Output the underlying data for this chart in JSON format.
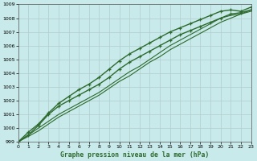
{
  "title": "Graphe pression niveau de la mer (hPa)",
  "bg_color": "#c8eaea",
  "grid_color": "#b0cccc",
  "line_color": "#2d6a2d",
  "xlim": [
    0,
    23
  ],
  "ylim": [
    999,
    1009
  ],
  "xticks": [
    0,
    1,
    2,
    3,
    4,
    5,
    6,
    7,
    8,
    9,
    10,
    11,
    12,
    13,
    14,
    15,
    16,
    17,
    18,
    19,
    20,
    21,
    22,
    23
  ],
  "yticks": [
    999,
    1000,
    1001,
    1002,
    1003,
    1004,
    1005,
    1006,
    1007,
    1008,
    1009
  ],
  "lines": [
    {
      "x": [
        0,
        1,
        2,
        3,
        4,
        5,
        6,
        7,
        8,
        9,
        10,
        11,
        12,
        13,
        14,
        15,
        16,
        17,
        18,
        19,
        20,
        21,
        22,
        23
      ],
      "y": [
        999.0,
        999.7,
        1000.3,
        1001.1,
        1001.8,
        1002.3,
        1002.8,
        1003.2,
        1003.7,
        1004.3,
        1004.9,
        1005.4,
        1005.8,
        1006.2,
        1006.6,
        1007.0,
        1007.3,
        1007.6,
        1007.9,
        1008.2,
        1008.5,
        1008.6,
        1008.5,
        1008.8
      ],
      "marker": true,
      "linewidth": 1.0
    },
    {
      "x": [
        0,
        1,
        2,
        3,
        4,
        5,
        6,
        7,
        8,
        9,
        10,
        11,
        12,
        13,
        14,
        15,
        16,
        17,
        18,
        19,
        20,
        21,
        22,
        23
      ],
      "y": [
        999.0,
        999.5,
        1000.2,
        1001.0,
        1001.6,
        1002.0,
        1002.4,
        1002.8,
        1003.2,
        1003.7,
        1004.3,
        1004.8,
        1005.2,
        1005.6,
        1006.0,
        1006.4,
        1006.8,
        1007.1,
        1007.4,
        1007.7,
        1008.0,
        1008.3,
        1008.4,
        1008.6
      ],
      "marker": true,
      "linewidth": 1.0
    },
    {
      "x": [
        0,
        1,
        2,
        3,
        4,
        5,
        6,
        7,
        8,
        9,
        10,
        11,
        12,
        13,
        14,
        15,
        16,
        17,
        18,
        19,
        20,
        21,
        22,
        23
      ],
      "y": [
        999.0,
        999.4,
        999.8,
        1000.3,
        1000.8,
        1001.2,
        1001.6,
        1002.0,
        1002.4,
        1002.9,
        1003.4,
        1003.8,
        1004.3,
        1004.8,
        1005.2,
        1005.7,
        1006.1,
        1006.5,
        1006.9,
        1007.3,
        1007.7,
        1008.0,
        1008.3,
        1008.6
      ],
      "marker": false,
      "linewidth": 0.8
    },
    {
      "x": [
        0,
        1,
        2,
        3,
        4,
        5,
        6,
        7,
        8,
        9,
        10,
        11,
        12,
        13,
        14,
        15,
        16,
        17,
        18,
        19,
        20,
        21,
        22,
        23
      ],
      "y": [
        999.0,
        999.5,
        1000.0,
        1000.5,
        1001.0,
        1001.4,
        1001.8,
        1002.2,
        1002.6,
        1003.1,
        1003.6,
        1004.1,
        1004.5,
        1005.0,
        1005.5,
        1006.0,
        1006.4,
        1006.8,
        1007.2,
        1007.6,
        1008.0,
        1008.2,
        1008.3,
        1008.5
      ],
      "marker": false,
      "linewidth": 0.8
    }
  ]
}
